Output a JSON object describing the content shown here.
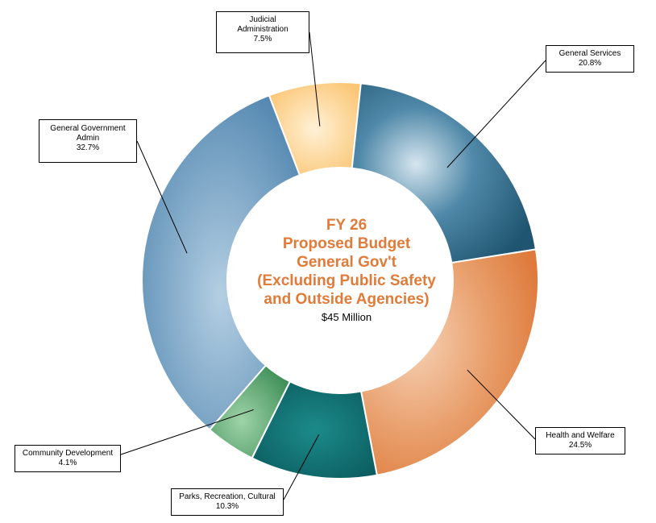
{
  "chart_data": {
    "type": "pie",
    "subtype": "donut",
    "center": {
      "lines": [
        "FY 26",
        "Proposed Budget",
        "General Gov't",
        "(Excluding Public Safety",
        "and Outside Agencies)"
      ],
      "total": "$45 Million"
    },
    "slices": [
      {
        "name": "Judicial Administration",
        "label_lines": [
          "Judicial",
          "Administration"
        ],
        "percent_label": "7.5%",
        "value": 7.5,
        "color": "#fccb7a"
      },
      {
        "name": "General Services",
        "label_lines": [
          "General Services"
        ],
        "percent_label": "20.8%",
        "value": 20.8,
        "color": "#2e6c8c"
      },
      {
        "name": "Health and Welfare",
        "label_lines": [
          "Health and Welfare"
        ],
        "percent_label": "24.5%",
        "value": 24.5,
        "color": "#e98e55"
      },
      {
        "name": "Parks, Recreation, Cultural",
        "label_lines": [
          "Parks, Recreation, Cultural"
        ],
        "percent_label": "10.3%",
        "value": 10.3,
        "color": "#0f6d70"
      },
      {
        "name": "Community Development",
        "label_lines": [
          "Community Development"
        ],
        "percent_label": "4.1%",
        "value": 4.1,
        "color": "#4e9e66"
      },
      {
        "name": "General Government Admin",
        "label_lines": [
          "General Government",
          "Admin"
        ],
        "percent_label": "32.7%",
        "value": 32.7,
        "color": "#5b8fb8"
      }
    ]
  }
}
